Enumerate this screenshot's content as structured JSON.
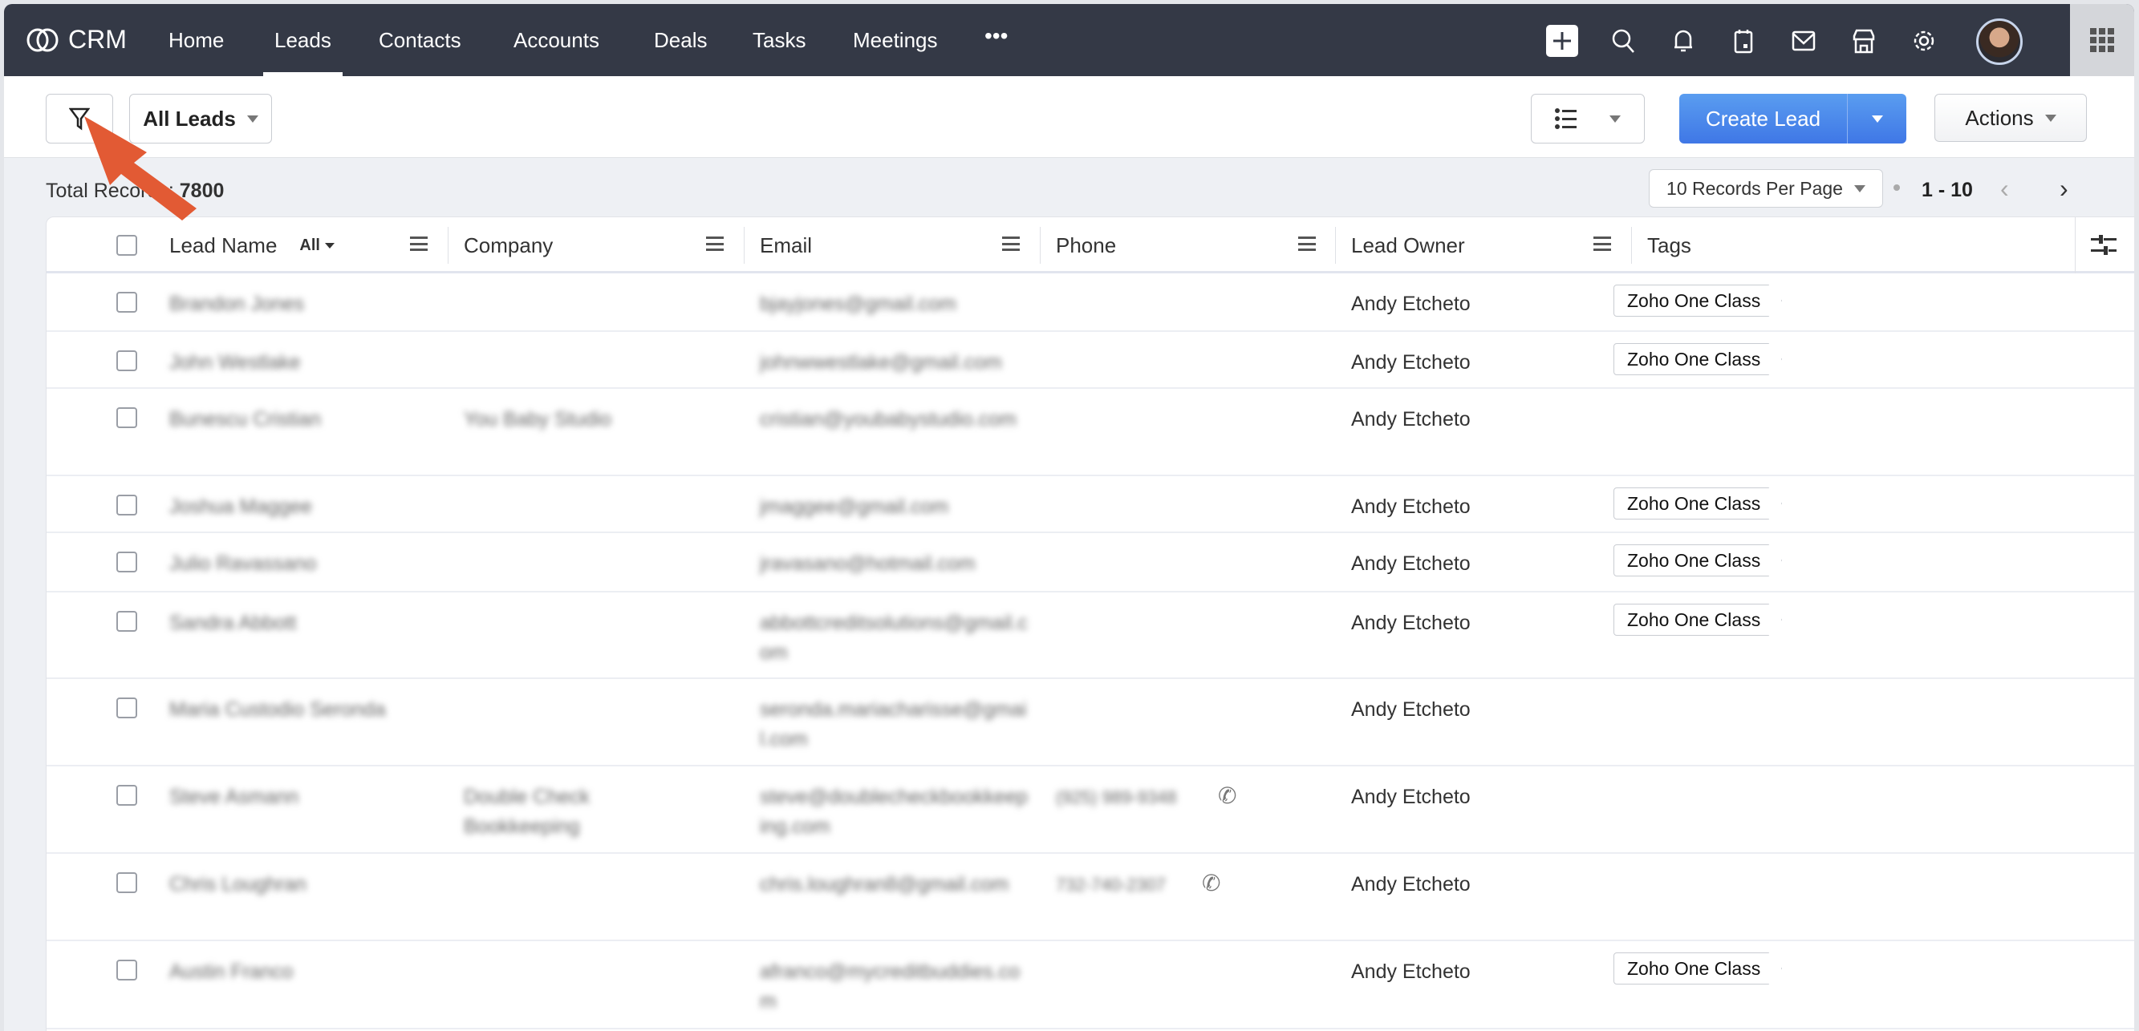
{
  "nav": {
    "brand": "CRM",
    "items": [
      {
        "label": "Home",
        "active": false
      },
      {
        "label": "Leads",
        "active": true
      },
      {
        "label": "Contacts",
        "active": false
      },
      {
        "label": "Accounts",
        "active": false
      },
      {
        "label": "Deals",
        "active": false
      },
      {
        "label": "Tasks",
        "active": false
      },
      {
        "label": "Meetings",
        "active": false
      }
    ],
    "more": "•••",
    "icons": [
      "plus-icon",
      "search-icon",
      "bell-icon",
      "calendar-icon",
      "mail-icon",
      "marketplace-icon",
      "gear-icon",
      "avatar",
      "apps-grid-icon"
    ]
  },
  "toolbar": {
    "view": "All Leads",
    "create": "Create Lead",
    "actions": "Actions"
  },
  "summary": {
    "total_label": "Total Records",
    "total": "7800",
    "per_page": "10 Records Per Page",
    "range": "1 - 10"
  },
  "columns": {
    "lead_name": "Lead Name",
    "lead_name_filter": "All",
    "company": "Company",
    "email": "Email",
    "phone": "Phone",
    "owner": "Lead Owner",
    "tags": "Tags"
  },
  "rows": [
    {
      "name": "Brandon Jones",
      "company": "",
      "email": "bjayjones@gmail.com",
      "phone": "",
      "owner": "Andy Etcheto",
      "tag": "Zoho One Class"
    },
    {
      "name": "John Westlake",
      "company": "",
      "email": "johnwwestlake@gmail.com",
      "phone": "",
      "owner": "Andy Etcheto",
      "tag": "Zoho One Class"
    },
    {
      "name": "Bunescu Cristian",
      "company": "You Baby Studio",
      "email": "cristian@youbabystudio.com",
      "phone": "",
      "owner": "Andy Etcheto",
      "tag": ""
    },
    {
      "name": "Joshua Maggee",
      "company": "",
      "email": "jmaggee@gmail.com",
      "phone": "",
      "owner": "Andy Etcheto",
      "tag": "Zoho One Class"
    },
    {
      "name": "Julio Ravassano",
      "company": "",
      "email": "jravasano@hotmail.com",
      "phone": "",
      "owner": "Andy Etcheto",
      "tag": "Zoho One Class"
    },
    {
      "name": "Sandra Abbott",
      "company": "",
      "email": "abbottcreditsolutions@gmail.com",
      "phone": "",
      "owner": "Andy Etcheto",
      "tag": "Zoho One Class"
    },
    {
      "name": "Maria Custodio Seronda",
      "company": "",
      "email": "seronda.mariacharisse@gmail.com",
      "phone": "",
      "owner": "Andy Etcheto",
      "tag": ""
    },
    {
      "name": "Steve Asmann",
      "company": "Double Check Bookkeeping",
      "email": "steve@doublecheckbookkeeping.com",
      "phone": "(925) 989-9348",
      "owner": "Andy Etcheto",
      "tag": ""
    },
    {
      "name": "Chris Loughran",
      "company": "",
      "email": "chris.loughran8@gmail.com",
      "phone": "732-740-2307",
      "owner": "Andy Etcheto",
      "tag": ""
    },
    {
      "name": "Austin Franco",
      "company": "",
      "email": "afranco@mycreditbuddies.com",
      "phone": "",
      "owner": "Andy Etcheto",
      "tag": "Zoho One Class"
    }
  ],
  "colors": {
    "nav_bg": "#343946",
    "primary": "#4a86ec",
    "annotation_arrow": "#e25a34"
  }
}
